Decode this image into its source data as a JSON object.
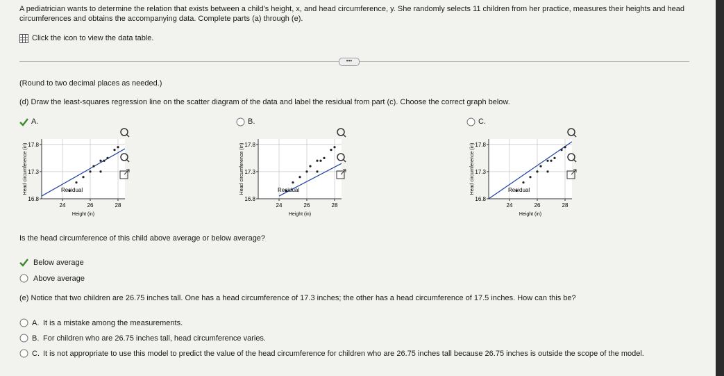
{
  "problem": {
    "intro": "A pediatrician wants to determine the relation that exists between a child's height, x, and head circumference, y. She randomly selects 11 children from her practice, measures their heights and head circumferences and obtains the accompanying data. Complete parts (a) through (e).",
    "data_link": "Click the icon to view the data table."
  },
  "round_note": "(Round to two decimal places as needed.)",
  "part_d": {
    "prompt": "(d) Draw the least-squares regression line on the scatter diagram of the data and label the residual from part (c). Choose the correct graph below.",
    "options": [
      {
        "letter": "A.",
        "selected": true,
        "chart": {
          "type": "scatter",
          "xlabel": "Height (in)",
          "ylabel": "Head circumference (in)",
          "annotation": "Residual",
          "grid": true,
          "color": "#222222",
          "x": [
            24.5,
            25,
            25.5,
            26,
            26.25,
            26.75,
            26.75,
            27,
            27.25,
            27.75,
            28
          ],
          "y": [
            16.95,
            17.1,
            17.2,
            17.3,
            17.4,
            17.3,
            17.5,
            17.5,
            17.55,
            17.7,
            17.75
          ],
          "line_x": [
            22.5,
            28.5
          ],
          "line_y": [
            16.85,
            17.72
          ],
          "xlim": [
            22.5,
            28.5
          ],
          "ylim": [
            16.8,
            17.9
          ],
          "xticks": [
            24,
            26,
            28
          ],
          "yticks": [
            16.8,
            17.3,
            17.8
          ]
        }
      },
      {
        "letter": "B.",
        "selected": false,
        "chart": {
          "type": "scatter",
          "xlabel": "Height (in)",
          "ylabel": "Head circumference (in)",
          "annotation": "Residual",
          "grid": true,
          "color": "#222222",
          "x": [
            24.5,
            25,
            25.5,
            26,
            26.25,
            26.75,
            26.75,
            27,
            27.25,
            27.75,
            28
          ],
          "y": [
            16.95,
            17.1,
            17.2,
            17.3,
            17.4,
            17.3,
            17.5,
            17.5,
            17.55,
            17.7,
            17.75
          ],
          "line_x": [
            24,
            28.5
          ],
          "line_y": [
            16.85,
            17.45
          ],
          "xlim": [
            22.5,
            28.5
          ],
          "ylim": [
            16.8,
            17.9
          ],
          "xticks": [
            24,
            26,
            28
          ],
          "yticks": [
            16.8,
            17.3,
            17.8
          ]
        }
      },
      {
        "letter": "C.",
        "selected": false,
        "chart": {
          "type": "scatter",
          "xlabel": "Height (in)",
          "ylabel": "Head circumference (in)",
          "annotation": "Residual",
          "grid": true,
          "color": "#222222",
          "x": [
            24.5,
            25,
            25.5,
            26,
            26.25,
            26.75,
            26.75,
            27,
            27.25,
            27.75,
            28
          ],
          "y": [
            16.95,
            17.1,
            17.2,
            17.3,
            17.4,
            17.3,
            17.5,
            17.5,
            17.55,
            17.7,
            17.75
          ],
          "line_x": [
            22.5,
            28.5
          ],
          "line_y": [
            16.8,
            17.85
          ],
          "xlim": [
            22.5,
            28.5
          ],
          "ylim": [
            16.8,
            17.9
          ],
          "xticks": [
            24,
            26,
            28
          ],
          "yticks": [
            16.8,
            17.3,
            17.8
          ]
        }
      }
    ]
  },
  "question": "Is the head circumference of this child above average or below average?",
  "choices": [
    {
      "text": "Below average",
      "selected": true
    },
    {
      "text": "Above average",
      "selected": false
    }
  ],
  "part_e": {
    "prompt": "(e) Notice that two children are 26.75 inches tall. One has a head circumference of 17.3 inches; the other has a head circumference of 17.5 inches. How can this be?",
    "options": [
      {
        "letter": "A.",
        "text": "It is a mistake among the measurements.",
        "selected": false
      },
      {
        "letter": "B.",
        "text": "For children who are 26.75 inches tall, head circumference varies.",
        "selected": false
      },
      {
        "letter": "C.",
        "text": "It is not appropriate to use this model to predict the value of the head circumference for children who are 26.75 inches tall because 26.75 inches is outside the scope of the model.",
        "selected": false
      }
    ]
  }
}
